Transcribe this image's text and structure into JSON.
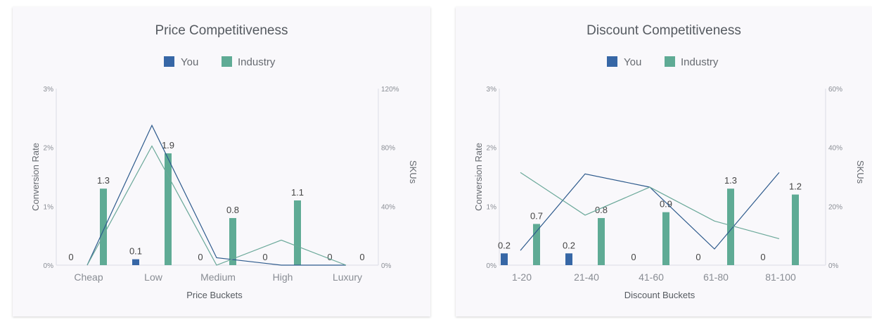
{
  "chart_data": [
    {
      "type": "bar",
      "title": "Price Competitiveness",
      "xlabel": "Price Buckets",
      "ylabel": "Conversion Rate",
      "y2label": "SKUs",
      "categories": [
        "Cheap",
        "Low",
        "Medium",
        "High",
        "Luxury"
      ],
      "yticks": [
        "0%",
        "1%",
        "2%",
        "3%"
      ],
      "y2ticks": [
        "0%",
        "40%",
        "80%",
        "120%"
      ],
      "ylim": [
        0,
        3
      ],
      "y2lim": [
        0,
        120
      ],
      "legend_position": "top-center",
      "series": [
        {
          "name": "You",
          "values": [
            0,
            0.1,
            0,
            0,
            0
          ],
          "color": "#3767a6"
        },
        {
          "name": "Industry",
          "values": [
            1.3,
            1.9,
            0.8,
            1.1,
            0
          ],
          "color": "#5fab95"
        }
      ],
      "data_labels": [
        [
          "0",
          "0.1",
          "0",
          "0",
          "0"
        ],
        [
          "1.3",
          "1.9",
          "0.8",
          "1.1",
          "0"
        ]
      ],
      "lines": [
        {
          "color": "#2d5a8c",
          "axis": "right",
          "values": [
            0,
            95,
            5,
            0,
            0
          ]
        },
        {
          "color": "#6aa899",
          "axis": "right",
          "values": [
            0,
            81,
            0,
            17,
            0
          ]
        }
      ]
    },
    {
      "type": "bar",
      "title": "Discount Competitiveness",
      "xlabel": "Discount Buckets",
      "ylabel": "Conversion Rate",
      "y2label": "SKUs",
      "categories": [
        "1-20",
        "21-40",
        "41-60",
        "61-80",
        "81-100"
      ],
      "yticks": [
        "0%",
        "1%",
        "2%",
        "3%"
      ],
      "y2ticks": [
        "0%",
        "20%",
        "40%",
        "60%"
      ],
      "ylim": [
        0,
        3
      ],
      "y2lim": [
        0,
        60
      ],
      "legend_position": "top-center",
      "series": [
        {
          "name": "You",
          "values": [
            0.2,
            0.2,
            0,
            0,
            0
          ],
          "color": "#3767a6"
        },
        {
          "name": "Industry",
          "values": [
            0.7,
            0.8,
            0.9,
            1.3,
            1.2
          ],
          "color": "#5fab95"
        }
      ],
      "data_labels": [
        [
          "0.2",
          "0.2",
          "0",
          "0",
          "0"
        ],
        [
          "0.7",
          "0.8",
          "0.9",
          "1.3",
          "1.2"
        ]
      ],
      "lines": [
        {
          "color": "#2d5a8c",
          "axis": "right",
          "values": [
            5,
            31,
            26.5,
            5.5,
            31.5
          ]
        },
        {
          "color": "#6aa899",
          "axis": "right",
          "values": [
            31.5,
            17,
            26.5,
            15,
            9
          ]
        }
      ]
    }
  ]
}
